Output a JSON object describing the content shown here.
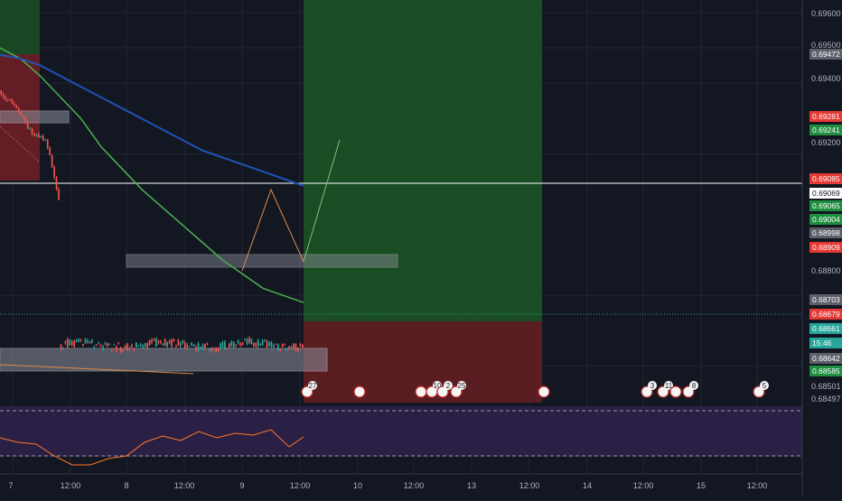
{
  "theme": {
    "background": "#131722",
    "grid": "#1f2433",
    "axis_text": "#b2b5be",
    "bull": "#26a69a",
    "bear": "#ef5350",
    "ema_fast": "#4caf50",
    "ema_slow": "#1e53b5",
    "long_target_zone": "#1b4d24",
    "long_stop_zone": "#5a1d22",
    "rsi_panel": "#2a1f44",
    "rsi_line": "#ff7a26",
    "box_fill": "#8a8f9c",
    "projection_up": "#7fbf7a",
    "projection_zig": "#e08a4a"
  },
  "price_axis": {
    "ticks": [
      "0.69600",
      "0.69500",
      "0.69400",
      "0.69200",
      "0.68800",
      "0.68501",
      "0.68497"
    ],
    "badges": [
      {
        "label": "0.69472",
        "color": "#5d606b",
        "value": 0.69472
      },
      {
        "label": "0.69281",
        "color": "#e53935",
        "value": 0.69281
      },
      {
        "label": "0.69241",
        "color": "#1e8e3e",
        "value": 0.69241
      },
      {
        "label": "0.69085",
        "color": "#e53935",
        "value": 0.69085
      },
      {
        "label": "0.69069",
        "color": "#ffffff",
        "value": 0.69069
      },
      {
        "label": "0.69065",
        "color": "#1e8e3e",
        "value": 0.69065
      },
      {
        "label": "0.69004",
        "color": "#1e8e3e",
        "value": 0.69004
      },
      {
        "label": "0.68998",
        "color": "#5d606b",
        "value": 0.68998
      },
      {
        "label": "0.68909",
        "color": "#e53935",
        "value": 0.68909
      },
      {
        "label": "0.68703",
        "color": "#5d606b",
        "value": 0.68703
      },
      {
        "label": "0.68679",
        "color": "#e53935",
        "value": 0.68679
      },
      {
        "label": "0.68661",
        "color": "#26a69a",
        "value": 0.68661
      },
      {
        "label": "15:46",
        "color": "#26a69a",
        "value": 0.68625
      },
      {
        "label": "0.68642",
        "color": "#5d606b",
        "value": 0.6859
      },
      {
        "label": "0.68585",
        "color": "#1e8e3e",
        "value": 0.68555
      }
    ]
  },
  "time_axis": {
    "labels": [
      "7",
      "12:00",
      "8",
      "12:00",
      "9",
      "12:00",
      "10",
      "12:00",
      "13",
      "12:00",
      "14",
      "12:00",
      "15",
      "12:00"
    ]
  },
  "events": [
    {
      "label": "27"
    },
    {
      "label": ""
    },
    {
      "label": ""
    },
    {
      "label": "10"
    },
    {
      "label": "2"
    },
    {
      "label": "25"
    },
    {
      "label": ""
    },
    {
      "label": "3"
    },
    {
      "label": "11"
    },
    {
      "label": ""
    },
    {
      "label": "8"
    },
    {
      "label": "5"
    }
  ],
  "rsi": {
    "levels": [
      "60.00",
      "20.00"
    ]
  },
  "chart_data": {
    "type": "line",
    "title": "",
    "series": [
      {
        "values": [
          0.695,
          0.6947,
          0.6942,
          0.6936,
          0.693,
          0.6922,
          0.6916,
          0.691,
          0.6905,
          0.69,
          0.6895,
          0.689,
          0.6886,
          0.6882,
          0.688,
          0.6878
        ]
      },
      {
        "values": [
          0.6948,
          0.6947,
          0.6945,
          0.6942,
          0.6939,
          0.6936,
          0.6933,
          0.693,
          0.6927,
          0.6924,
          0.6921,
          0.6919,
          0.6917,
          0.6915,
          0.6913,
          0.6911
        ]
      }
    ],
    "ylim": [
      0.68497,
      0.6962
    ]
  }
}
